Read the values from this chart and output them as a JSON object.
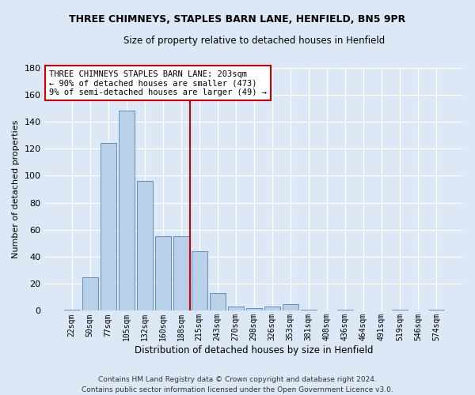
{
  "title": "THREE CHIMNEYS, STAPLES BARN LANE, HENFIELD, BN5 9PR",
  "subtitle": "Size of property relative to detached houses in Henfield",
  "xlabel": "Distribution of detached houses by size in Henfield",
  "ylabel": "Number of detached properties",
  "bar_labels": [
    "22sqm",
    "50sqm",
    "77sqm",
    "105sqm",
    "132sqm",
    "160sqm",
    "188sqm",
    "215sqm",
    "243sqm",
    "270sqm",
    "298sqm",
    "326sqm",
    "353sqm",
    "381sqm",
    "408sqm",
    "436sqm",
    "464sqm",
    "491sqm",
    "519sqm",
    "546sqm",
    "574sqm"
  ],
  "bar_heights": [
    1,
    25,
    124,
    148,
    96,
    55,
    55,
    44,
    13,
    3,
    2,
    3,
    5,
    1,
    0,
    1,
    0,
    0,
    1,
    0,
    1
  ],
  "bar_color": "#b8d0e8",
  "bar_edge_color": "#6090c0",
  "vline_index": 6.5,
  "vline_color": "#cc0000",
  "annotation_text": "THREE CHIMNEYS STAPLES BARN LANE: 203sqm\n← 90% of detached houses are smaller (473)\n9% of semi-detached houses are larger (49) →",
  "annotation_box_facecolor": "#ffffff",
  "annotation_box_edgecolor": "#cc0000",
  "ylim_max": 180,
  "figure_background_color": "#dce8f5",
  "plot_background_color": "#dce8f5",
  "footer1": "Contains HM Land Registry data © Crown copyright and database right 2024.",
  "footer2": "Contains public sector information licensed under the Open Government Licence v3.0."
}
